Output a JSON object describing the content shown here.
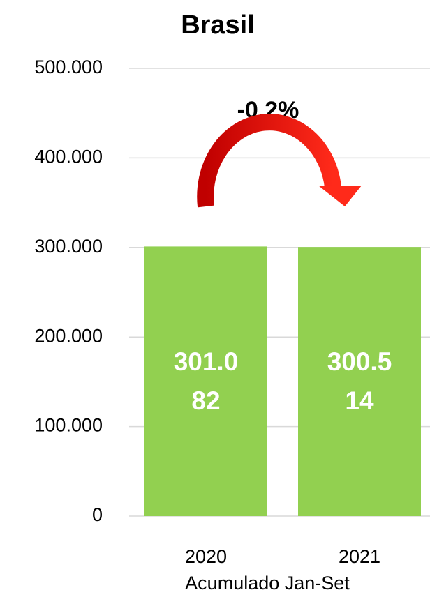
{
  "chart_data": {
    "type": "bar",
    "title": "Brasil",
    "annotation": "-0,2%",
    "x_label": "Acumulado Jan-Set",
    "categories": [
      "2020",
      "2021"
    ],
    "values": [
      301082,
      300514
    ],
    "value_labels": [
      "301.082",
      "300.514"
    ],
    "color": "#92d050",
    "ylim": [
      0,
      500000
    ],
    "yticks": [
      0,
      {
        "value": 100000,
        "label": "100.000"
      },
      {
        "value": 200000,
        "label": "200.000"
      },
      {
        "value": 300000,
        "label": "300.000"
      },
      {
        "value": 400000,
        "label": "400.000"
      },
      {
        "value": 500000,
        "label": "500.000"
      }
    ],
    "grid": true
  }
}
